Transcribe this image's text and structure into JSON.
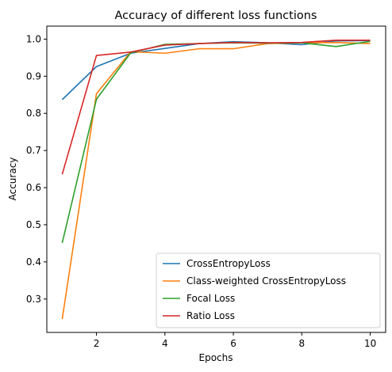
{
  "chart_data": {
    "type": "line",
    "title": "Accuracy of different loss functions",
    "xlabel": "Epochs",
    "ylabel": "Accuracy",
    "xlim": [
      0.55,
      10.45
    ],
    "ylim": [
      0.21,
      1.035
    ],
    "xticks": [
      2,
      4,
      6,
      8,
      10
    ],
    "yticks": [
      0.3,
      0.4,
      0.5,
      0.6,
      0.7,
      0.8,
      0.9,
      1.0
    ],
    "ytick_labels": [
      "0.3",
      "0.4",
      "0.5",
      "0.6",
      "0.7",
      "0.8",
      "0.9",
      "1.0"
    ],
    "grid": false,
    "legend_position": "lower-right",
    "x": [
      1,
      2,
      3,
      4,
      5,
      6,
      7,
      8,
      9,
      10
    ],
    "series": [
      {
        "name": "CrossEntropyLoss",
        "color": "#1f77b4",
        "values": [
          0.837,
          0.926,
          0.962,
          0.975,
          0.988,
          0.993,
          0.99,
          0.985,
          0.995,
          0.996
        ]
      },
      {
        "name": "Class-weighted CrossEntropyLoss",
        "color": "#ff7f0e",
        "values": [
          0.246,
          0.853,
          0.966,
          0.962,
          0.974,
          0.974,
          0.988,
          0.99,
          0.991,
          0.988
        ]
      },
      {
        "name": "Focal Loss",
        "color": "#2ca02c",
        "values": [
          0.451,
          0.838,
          0.963,
          0.986,
          0.988,
          0.99,
          0.989,
          0.99,
          0.98,
          0.994
        ]
      },
      {
        "name": "Ratio Loss",
        "color": "#d62728",
        "values": [
          0.636,
          0.956,
          0.965,
          0.984,
          0.988,
          0.991,
          0.99,
          0.991,
          0.997,
          0.997
        ]
      }
    ]
  }
}
